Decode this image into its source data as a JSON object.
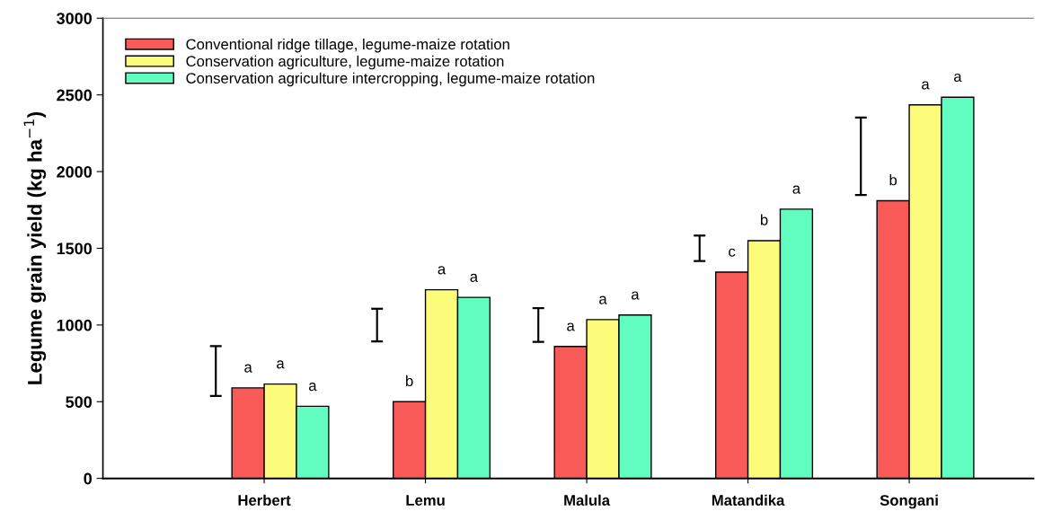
{
  "chart_data": {
    "type": "bar",
    "ylabel": "Legume grain yield (kg ha$^{−1}$)",
    "categories": [
      "Herbert",
      "Lemu",
      "Malula",
      "Matandika",
      "Songani"
    ],
    "series": [
      {
        "type": "bar",
        "color": "#000000",
        "base": [
          538,
          893,
          890,
          1417,
          1848
        ],
        "values": [
          324,
          213,
          220,
          166,
          504
        ]
      },
      {
        "name": "Conventional ridge tillage, legume-maize rotation",
        "color": "#f85a58",
        "values": [
          590,
          500,
          860,
          1345,
          1810
        ],
        "value_labels": [
          "a",
          "b",
          "a",
          "c",
          "b"
        ]
      },
      {
        "name": "Conservation agriculture, legume-maize rotation",
        "color": "#fdfc7a",
        "values": [
          615,
          1230,
          1035,
          1550,
          2435
        ],
        "value_labels": [
          "a",
          "a",
          "a",
          "b",
          "a"
        ]
      },
      {
        "name": "Conservation agriculture intercropping, legume-maize rotation",
        "color": "#62fdc0",
        "values": [
          470,
          1180,
          1065,
          1755,
          2485
        ],
        "value_labels": [
          "a",
          "a",
          "a",
          "a",
          "a"
        ]
      }
    ],
    "ylim": [
      0,
      3000
    ],
    "yticks": [
      0,
      500,
      1000,
      1500,
      2000,
      2500,
      3000
    ],
    "grid": false,
    "legend": "top left"
  }
}
